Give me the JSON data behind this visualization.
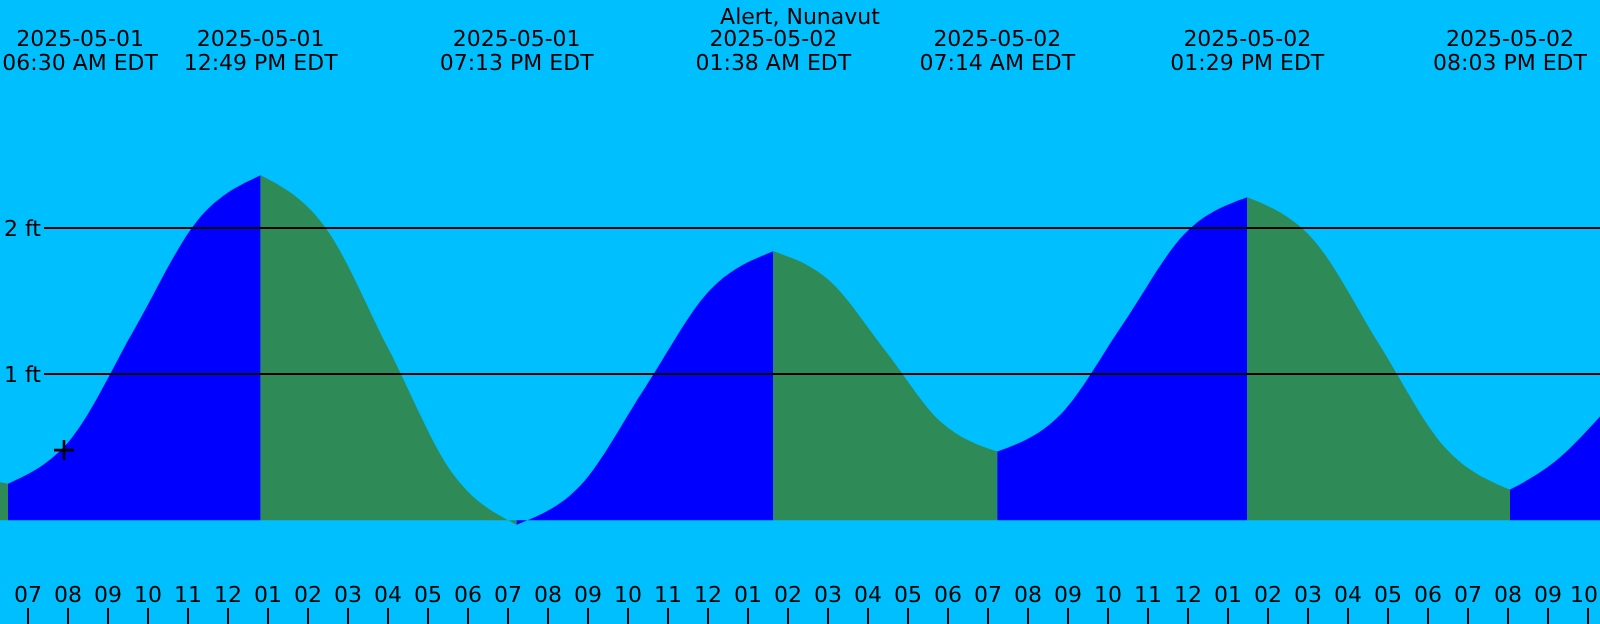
{
  "chart_data": {
    "type": "area",
    "title": "Alert, Nunavut",
    "xlim": [
      "2025-05-01T06:18",
      "2025-05-02T22:18"
    ],
    "ylim": [
      -0.71,
      3.56
    ],
    "xticks": [
      {
        "value": "2025-05-01T07:00",
        "label": "07"
      },
      {
        "value": "2025-05-01T08:00",
        "label": "08"
      },
      {
        "value": "2025-05-01T09:00",
        "label": "09"
      },
      {
        "value": "2025-05-01T10:00",
        "label": "10"
      },
      {
        "value": "2025-05-01T11:00",
        "label": "11"
      },
      {
        "value": "2025-05-01T12:00",
        "label": "12"
      },
      {
        "value": "2025-05-01T13:00",
        "label": "01"
      },
      {
        "value": "2025-05-01T14:00",
        "label": "02"
      },
      {
        "value": "2025-05-01T15:00",
        "label": "03"
      },
      {
        "value": "2025-05-01T16:00",
        "label": "04"
      },
      {
        "value": "2025-05-01T17:00",
        "label": "05"
      },
      {
        "value": "2025-05-01T18:00",
        "label": "06"
      },
      {
        "value": "2025-05-01T19:00",
        "label": "07"
      },
      {
        "value": "2025-05-01T20:00",
        "label": "08"
      },
      {
        "value": "2025-05-01T21:00",
        "label": "09"
      },
      {
        "value": "2025-05-01T22:00",
        "label": "10"
      },
      {
        "value": "2025-05-01T23:00",
        "label": "11"
      },
      {
        "value": "2025-05-02T00:00",
        "label": "12"
      },
      {
        "value": "2025-05-02T01:00",
        "label": "01"
      },
      {
        "value": "2025-05-02T02:00",
        "label": "02"
      },
      {
        "value": "2025-05-02T03:00",
        "label": "03"
      },
      {
        "value": "2025-05-02T04:00",
        "label": "04"
      },
      {
        "value": "2025-05-02T05:00",
        "label": "05"
      },
      {
        "value": "2025-05-02T06:00",
        "label": "06"
      },
      {
        "value": "2025-05-02T07:00",
        "label": "07"
      },
      {
        "value": "2025-05-02T08:00",
        "label": "08"
      },
      {
        "value": "2025-05-02T09:00",
        "label": "09"
      },
      {
        "value": "2025-05-02T10:00",
        "label": "10"
      },
      {
        "value": "2025-05-02T11:00",
        "label": "11"
      },
      {
        "value": "2025-05-02T12:00",
        "label": "12"
      },
      {
        "value": "2025-05-02T13:00",
        "label": "01"
      },
      {
        "value": "2025-05-02T14:00",
        "label": "02"
      },
      {
        "value": "2025-05-02T15:00",
        "label": "03"
      },
      {
        "value": "2025-05-02T16:00",
        "label": "04"
      },
      {
        "value": "2025-05-02T17:00",
        "label": "05"
      },
      {
        "value": "2025-05-02T18:00",
        "label": "06"
      },
      {
        "value": "2025-05-02T19:00",
        "label": "07"
      },
      {
        "value": "2025-05-02T20:00",
        "label": "08"
      },
      {
        "value": "2025-05-02T21:00",
        "label": "09"
      },
      {
        "value": "2025-05-02T22:00",
        "label": "10"
      }
    ],
    "yticks": [
      {
        "value": 1,
        "label": "1 ft"
      },
      {
        "value": 2,
        "label": "2 ft"
      }
    ],
    "grid": "y",
    "series": [
      {
        "color": "#2e8b57",
        "x": [
          "2025-05-01T06:18",
          "2025-05-01T06:30"
        ],
        "values": [
          0.26,
          0.25
        ]
      },
      {
        "color": "#0000ff",
        "x": [
          "2025-05-01T06:30",
          "2025-05-01T08:05",
          "2025-05-01T09:40",
          "2025-05-01T11:14",
          "2025-05-01T12:49"
        ],
        "values": [
          0.25,
          0.56,
          1.31,
          2.05,
          2.36
        ]
      },
      {
        "color": "#2e8b57",
        "x": [
          "2025-05-01T12:49",
          "2025-05-01T14:25",
          "2025-05-01T16:01",
          "2025-05-01T17:37",
          "2025-05-01T19:13"
        ],
        "values": [
          2.36,
          2.01,
          1.17,
          0.32,
          -0.03
        ]
      },
      {
        "color": "#0000ff",
        "x": [
          "2025-05-01T19:13",
          "2025-05-01T20:49",
          "2025-05-01T22:26",
          "2025-05-02T00:02",
          "2025-05-02T01:38"
        ],
        "values": [
          -0.03,
          0.24,
          0.91,
          1.57,
          1.84
        ]
      },
      {
        "color": "#2e8b57",
        "x": [
          "2025-05-02T01:38",
          "2025-05-02T03:02",
          "2025-05-02T04:26",
          "2025-05-02T05:50",
          "2025-05-02T07:14"
        ],
        "values": [
          1.84,
          1.64,
          1.16,
          0.67,
          0.47
        ]
      },
      {
        "color": "#0000ff",
        "x": [
          "2025-05-02T07:14",
          "2025-05-02T08:48",
          "2025-05-02T10:22",
          "2025-05-02T11:55",
          "2025-05-02T13:29"
        ],
        "values": [
          0.47,
          0.72,
          1.34,
          1.96,
          2.21
        ]
      },
      {
        "color": "#2e8b57",
        "x": [
          "2025-05-02T13:29",
          "2025-05-02T15:08",
          "2025-05-02T16:46",
          "2025-05-02T18:25",
          "2025-05-02T20:03"
        ],
        "values": [
          2.21,
          1.92,
          1.21,
          0.5,
          0.21
        ]
      },
      {
        "color": "#0000ff",
        "x": [
          "2025-05-02T20:03",
          "2025-05-02T21:10",
          "2025-05-02T22:18"
        ],
        "values": [
          0.21,
          0.4,
          0.71
        ]
      },
      {
        "type": "scatter",
        "marker": "cross",
        "color": "#000000",
        "x": [
          "2025-05-01T07:54"
        ],
        "values": [
          0.48
        ]
      }
    ],
    "annotations": [
      "2025-05-01 06:30 AM EDT",
      "2025-05-01 12:49 PM EDT",
      "2025-05-01 07:13 PM EDT",
      "2025-05-02 01:38 AM EDT",
      "2025-05-02 07:14 AM EDT",
      "2025-05-02 01:29 PM EDT",
      "2025-05-02 08:03 PM EDT"
    ]
  }
}
